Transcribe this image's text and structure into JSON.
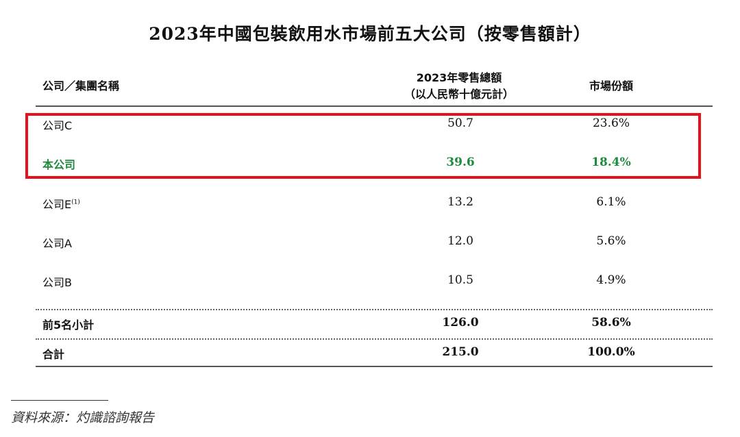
{
  "title": "2023年中國包裝飲用水市場前五大公司（按零售額計）",
  "headers": {
    "company": "公司／集團名稱",
    "sales_line1": "2023年零售總額",
    "sales_line2": "（以人民幣十億元計）",
    "share": "市場份額"
  },
  "rows": [
    {
      "name": "公司C",
      "note": "",
      "sales": "50.7",
      "share": "23.6%",
      "highlight": true
    },
    {
      "name": "本公司",
      "note": "",
      "sales": "39.6",
      "share": "18.4%",
      "highlight": true
    },
    {
      "name": "公司E",
      "note": "(1)",
      "sales": "13.2",
      "share": "6.1%"
    },
    {
      "name": "公司A",
      "note": "",
      "sales": "12.0",
      "share": "5.6%"
    },
    {
      "name": "公司B",
      "note": "",
      "sales": "10.5",
      "share": "4.9%"
    }
  ],
  "subtotal": {
    "name": "前5名小計",
    "sales": "126.0",
    "share": "58.6%"
  },
  "total": {
    "name": "合計",
    "sales": "215.0",
    "share": "100.0%"
  },
  "source": "資料來源：灼識諮詢報告",
  "colors": {
    "highlight_box": "#e8101a",
    "company_text": "#1e8a3c"
  }
}
